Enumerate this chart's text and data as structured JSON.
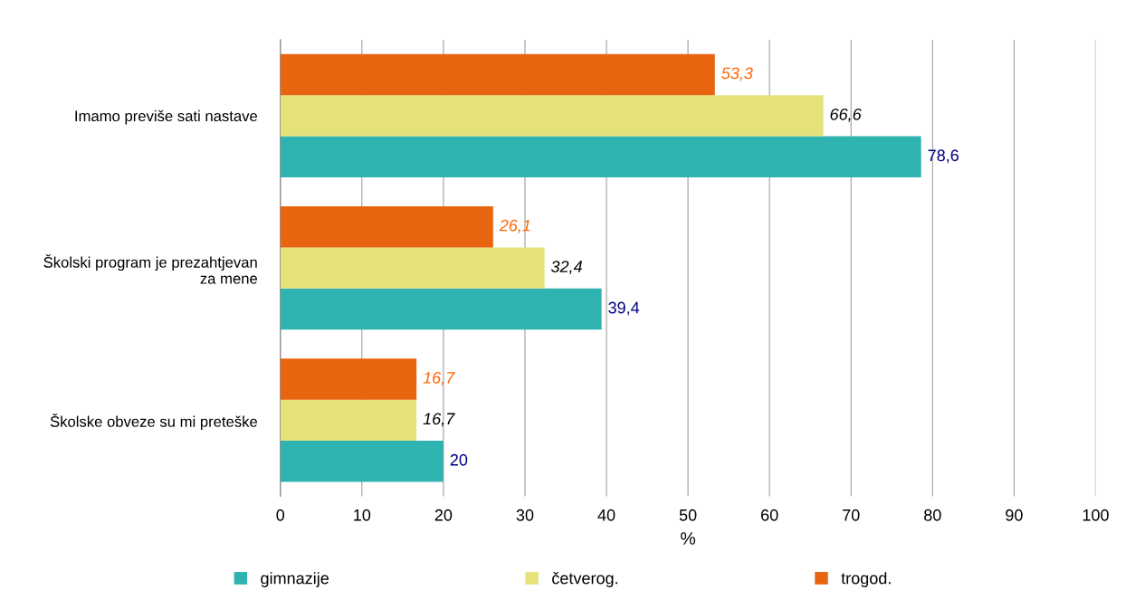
{
  "chart_data": {
    "type": "bar",
    "orientation": "horizontal",
    "xlabel": "%",
    "categories": [
      "Imamo previše sati nastave",
      "Školski program je prezahtjevan\nza mene",
      "Školske obveze su mi preteške"
    ],
    "series": [
      {
        "name": "gimnazije",
        "color": "#2fb3b0",
        "values": [
          78.6,
          39.4,
          20
        ],
        "value_labels": [
          "78,6",
          "39,4",
          "20"
        ]
      },
      {
        "name": "četverog.",
        "color": "#e6e27a",
        "values": [
          66.6,
          32.4,
          16.7
        ],
        "value_labels": [
          "66,6",
          "32,4",
          "16,7"
        ]
      },
      {
        "name": "trogod.",
        "color": "#e8650f",
        "values": [
          53.3,
          26.1,
          16.7
        ],
        "value_labels": [
          "53,3",
          "26,1",
          "16,7"
        ]
      }
    ],
    "xlim": [
      0,
      100
    ],
    "xticks": [
      0,
      10,
      20,
      30,
      40,
      50,
      60,
      70,
      80,
      90,
      100
    ],
    "grid": "x",
    "legend": "bottom"
  }
}
